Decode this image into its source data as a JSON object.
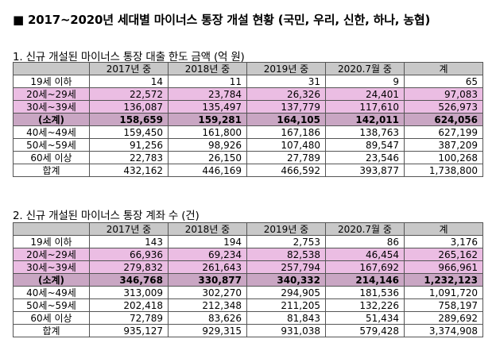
{
  "title": "■ 2017~2020년 세대별 마이너스 통장 개설 현황 (국민, 우리, 신한, 하나, 농협)",
  "sections": [
    {
      "heading": "1. 신규 개설된 마이너스 통장 대출 한도 금액 (억 원)",
      "columns": [
        "",
        "2017년 중",
        "2018년 중",
        "2019년 중",
        "2020.7월 중",
        "계"
      ],
      "rows": [
        {
          "label": "19세 이하",
          "values": [
            "14",
            "11",
            "31",
            "9",
            "65"
          ],
          "style": "plain"
        },
        {
          "label": "20세~29세",
          "values": [
            "22,572",
            "23,784",
            "26,326",
            "24,401",
            "97,083"
          ],
          "style": "pink"
        },
        {
          "label": "30세~39세",
          "values": [
            "136,087",
            "135,497",
            "137,779",
            "117,610",
            "526,973"
          ],
          "style": "pink"
        },
        {
          "label": "(소계)",
          "values": [
            "158,659",
            "159,281",
            "164,105",
            "142,011",
            "624,056"
          ],
          "style": "sub"
        },
        {
          "label": "40세~49세",
          "values": [
            "159,450",
            "161,800",
            "167,186",
            "138,763",
            "627,199"
          ],
          "style": "plain"
        },
        {
          "label": "50세~59세",
          "values": [
            "91,256",
            "98,926",
            "107,480",
            "89,547",
            "387,209"
          ],
          "style": "plain"
        },
        {
          "label": "60세 이상",
          "values": [
            "22,783",
            "26,150",
            "27,789",
            "23,546",
            "100,268"
          ],
          "style": "plain"
        },
        {
          "label": "합계",
          "values": [
            "432,162",
            "446,169",
            "466,592",
            "393,877",
            "1,738,800"
          ],
          "style": "plain"
        }
      ]
    },
    {
      "heading": "2. 신규 개설된 마이너스 통장 계좌 수 (건)",
      "columns": [
        "",
        "2017년 중",
        "2018년 중",
        "2019년 중",
        "2020.7월 중",
        "계"
      ],
      "rows": [
        {
          "label": "19세 이하",
          "values": [
            "143",
            "194",
            "2,753",
            "86",
            "3,176"
          ],
          "style": "plain"
        },
        {
          "label": "20세~29세",
          "values": [
            "66,936",
            "69,234",
            "82,538",
            "46,454",
            "265,162"
          ],
          "style": "pink"
        },
        {
          "label": "30세~39세",
          "values": [
            "279,832",
            "261,643",
            "257,794",
            "167,692",
            "966,961"
          ],
          "style": "pink"
        },
        {
          "label": "(소계)",
          "values": [
            "346,768",
            "330,877",
            "340,332",
            "214,146",
            "1,232,123"
          ],
          "style": "sub"
        },
        {
          "label": "40세~49세",
          "values": [
            "313,009",
            "302,270",
            "294,905",
            "181,536",
            "1,091,720"
          ],
          "style": "plain"
        },
        {
          "label": "50세~59세",
          "values": [
            "202,418",
            "212,348",
            "211,205",
            "132,226",
            "758,197"
          ],
          "style": "plain"
        },
        {
          "label": "60세 이상",
          "values": [
            "72,789",
            "83,626",
            "81,843",
            "51,434",
            "289,692"
          ],
          "style": "plain"
        },
        {
          "label": "합계",
          "values": [
            "935,127",
            "929,315",
            "931,038",
            "579,428",
            "3,374,908"
          ],
          "style": "plain"
        }
      ]
    }
  ]
}
